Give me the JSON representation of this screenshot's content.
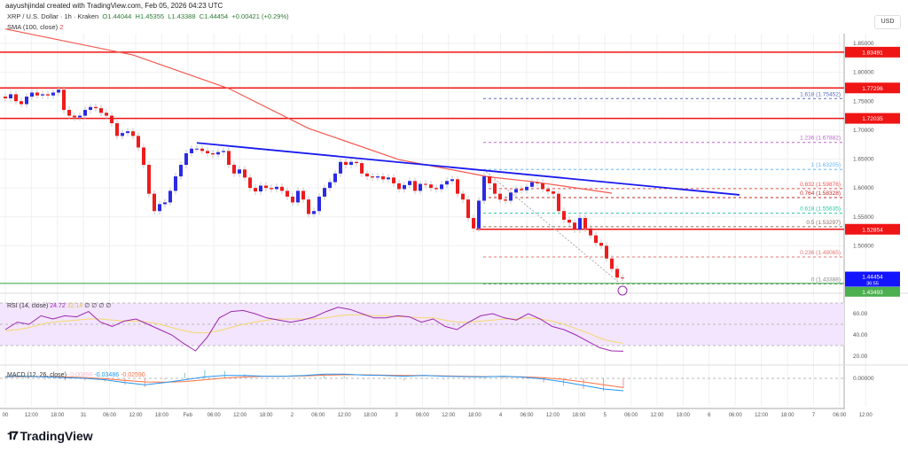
{
  "header": {
    "credit": "aayushjindal created with TradingView.com, Feb 05, 2026 04:23 UTC"
  },
  "legend": {
    "symbol": "XRP / U.S. Dollar · 1h · Kraken",
    "open": "O1.44044",
    "high": "H1.45355",
    "low": "L1.43388",
    "close": "C1.44454",
    "change": "+0.00421 (+0.29%)"
  },
  "sma_legend": {
    "label": "SMA (100, close)",
    "value": "2"
  },
  "currency": "USD",
  "rsi_legend": {
    "label": "RSI (14, close)",
    "rsi": "24.72",
    "signal": "32.14",
    "extra": "∅ ∅ ∅ ∅"
  },
  "macd_legend": {
    "label": "MACD (12, 26, close)",
    "hist": "-0.00896",
    "macd": "-0.03486",
    "signal": "-0.02590"
  },
  "logo": "TradingView",
  "colors": {
    "up": "#2a2ae6",
    "down": "#ee1c1c",
    "sma": "#f5584f",
    "trendline": "#1a1aef",
    "level": "#f01515",
    "support": "#4caf50",
    "rsi": "#9c27b0",
    "rsi_signal": "#f5d76e",
    "macd": "#2196f3",
    "macd_signal": "#ff7043",
    "current": "#1414ff"
  },
  "chart_data": {
    "type": "candlestick",
    "title": "XRP / U.S. Dollar · 1h · Kraken",
    "ylim": [
      1.405,
      1.885
    ],
    "y_ticks": [
      "1.85000",
      "1.80000",
      "1.75000",
      "1.70000",
      "1.65000",
      "1.60000",
      "1.55000",
      "1.50000"
    ],
    "x_ticks": [
      "00",
      "12:00",
      "18:00",
      "31",
      "06:00",
      "12:00",
      "18:00",
      "Feb",
      "06:00",
      "12:00",
      "18:00",
      "2",
      "06:00",
      "12:00",
      "18:00",
      "3",
      "06:00",
      "12:00",
      "18:00",
      "4",
      "06:00",
      "12:00",
      "18:00",
      "5",
      "06:00",
      "12:00",
      "18:00",
      "6",
      "06:00",
      "12:00",
      "18:00",
      "7",
      "06:00",
      "12:00"
    ],
    "closes": [
      1.755,
      1.762,
      1.75,
      1.745,
      1.758,
      1.765,
      1.76,
      1.762,
      1.76,
      1.765,
      1.77,
      1.735,
      1.725,
      1.722,
      1.725,
      1.735,
      1.74,
      1.738,
      1.73,
      1.725,
      1.712,
      1.69,
      1.695,
      1.698,
      1.69,
      1.67,
      1.64,
      1.59,
      1.56,
      1.572,
      1.575,
      1.595,
      1.62,
      1.64,
      1.66,
      1.668,
      1.668,
      1.664,
      1.66,
      1.658,
      1.662,
      1.664,
      1.64,
      1.625,
      1.632,
      1.618,
      1.6,
      1.594,
      1.604,
      1.6,
      1.598,
      1.602,
      1.595,
      1.585,
      1.575,
      1.595,
      1.58,
      1.555,
      1.56,
      1.585,
      1.6,
      1.61,
      1.625,
      1.645,
      1.64,
      1.645,
      1.643,
      1.625,
      1.62,
      1.618,
      1.62,
      1.615,
      1.618,
      1.608,
      1.598,
      1.605,
      1.612,
      1.595,
      1.607,
      1.606,
      1.6,
      1.598,
      1.606,
      1.612,
      1.615,
      1.59,
      1.58,
      1.548,
      1.53,
      1.578,
      1.62,
      1.608,
      1.59,
      1.58,
      1.578,
      1.592,
      1.598,
      1.596,
      1.602,
      1.61,
      1.608,
      1.598,
      1.594,
      1.59,
      1.56,
      1.545,
      1.54,
      1.528,
      1.548,
      1.53,
      1.518,
      1.505,
      1.5,
      1.478,
      1.46,
      1.445,
      1.44454
    ],
    "sma_100": [
      [
        0,
        1.875
      ],
      [
        24,
        1.83
      ],
      [
        42,
        1.772
      ],
      [
        57,
        1.703
      ],
      [
        74,
        1.649
      ],
      [
        91,
        1.619
      ],
      [
        99,
        1.611
      ],
      [
        114,
        1.591
      ]
    ],
    "horizontal_levels": [
      {
        "value": 1.83491,
        "label": "1.83491"
      },
      {
        "value": 1.77296,
        "label": "1.77296"
      },
      {
        "value": 1.72035,
        "label": "1.72035"
      },
      {
        "value": 1.52854,
        "label": "1.52854"
      }
    ],
    "support_level": {
      "value": 1.43493,
      "label": "1.43493"
    },
    "current_price": {
      "value": 1.44454,
      "label": "1.44454",
      "countdown": "36:55"
    },
    "trendline": [
      [
        1.678,
        36
      ],
      [
        1.588,
        138
      ]
    ],
    "fib_levels": [
      {
        "ratio": "0",
        "value": 1.43388,
        "label": "0 (1.43388)",
        "color": "#888888"
      },
      {
        "ratio": "0.236",
        "value": 1.48065,
        "label": "0.236 (1.48065)",
        "color": "#e57373"
      },
      {
        "ratio": "0.5",
        "value": 1.53297,
        "label": "0.5 (1.53297)",
        "color": "#8d6e63"
      },
      {
        "ratio": "0.618",
        "value": 1.55635,
        "label": "0.618 (1.55635)",
        "color": "#26c6a0"
      },
      {
        "ratio": "0.764",
        "value": 1.58328,
        "label": "0.764 (1.58328)",
        "color": "#c62828"
      },
      {
        "ratio": "0.832",
        "value": 1.59876,
        "label": "0.832 (1.59876)",
        "color": "#ef5350"
      },
      {
        "ratio": "1",
        "value": 1.63205,
        "label": "1 (1.63205)",
        "color": "#64b5f6"
      },
      {
        "ratio": "1.236",
        "value": 1.67882,
        "label": "1.236 (1.67882)",
        "color": "#ba68c8"
      },
      {
        "ratio": "1.618",
        "value": 1.75452,
        "label": "1.618 (1.75452)",
        "color": "#5c6bc0"
      }
    ],
    "rsi": {
      "ylim": [
        0,
        80
      ],
      "y_ticks": [
        "60.00",
        "40.00",
        "20.00"
      ],
      "band": [
        30,
        70
      ],
      "values": [
        45,
        52,
        50,
        58,
        55,
        58,
        57,
        62,
        52,
        48,
        53,
        55,
        50,
        45,
        40,
        32,
        25,
        38,
        56,
        62,
        63,
        60,
        56,
        54,
        52,
        54,
        57,
        62,
        66,
        64,
        60,
        56,
        56,
        58,
        57,
        52,
        55,
        48,
        45,
        52,
        58,
        60,
        56,
        54,
        60,
        55,
        48,
        45,
        40,
        34,
        28,
        25,
        24.72
      ],
      "signal": [
        44,
        45,
        47,
        50,
        52,
        53,
        54,
        55,
        55,
        54,
        53,
        53,
        52,
        50,
        47,
        44,
        42,
        42,
        44,
        47,
        50,
        52,
        54,
        55,
        55,
        55,
        55,
        56,
        58,
        59,
        59,
        58,
        58,
        57,
        57,
        56,
        56,
        54,
        52,
        52,
        53,
        54,
        55,
        55,
        56,
        55,
        53,
        50,
        46,
        42,
        37,
        34,
        32.14
      ]
    },
    "macd": {
      "zero_label": "0.00000",
      "macd": [
        0.005,
        0.006,
        0.004,
        0.002,
        0.0,
        -0.004,
        -0.012,
        -0.018,
        -0.012,
        -0.004,
        0.004,
        0.008,
        0.008,
        0.006,
        0.006,
        0.008,
        0.012,
        0.012,
        0.009,
        0.008,
        0.006,
        0.008,
        0.006,
        0.005,
        0.004,
        0.006,
        0.003,
        -0.002,
        -0.01,
        -0.02,
        -0.03,
        -0.03486
      ],
      "signal": [
        0.004,
        0.005,
        0.005,
        0.004,
        0.002,
        -0.001,
        -0.006,
        -0.01,
        -0.011,
        -0.009,
        -0.004,
        0.001,
        0.004,
        0.006,
        0.006,
        0.007,
        0.009,
        0.01,
        0.01,
        0.009,
        0.008,
        0.008,
        0.007,
        0.006,
        0.005,
        0.005,
        0.004,
        0.002,
        -0.003,
        -0.01,
        -0.018,
        -0.0259
      ]
    }
  }
}
